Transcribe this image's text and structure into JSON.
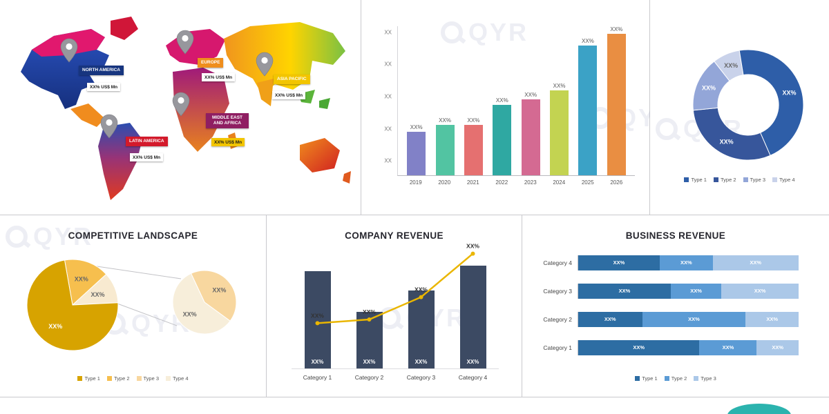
{
  "watermark": {
    "text": "QYR"
  },
  "cut_banners": [
    {
      "color": "#c01420"
    },
    {
      "color": "#2ab3a9"
    },
    {
      "color": "#2f6bb4"
    }
  ],
  "footer": {
    "logo_color": "#2bb3ae"
  },
  "chart_data": [
    {
      "id": "regional-market-map",
      "type": "map",
      "regions": [
        {
          "name": "NORTH AMERICA",
          "value": "XX% US$ Mn",
          "label_bg": "#17357f",
          "label_fg": "#ffffff",
          "value_bg": "#ffffff",
          "value_fg": "#1a1a1a"
        },
        {
          "name": "EUROPE",
          "value": "XX% US$ Mn",
          "label_bg": "#ef8e1d",
          "label_fg": "#ffffff",
          "value_bg": "#ffffff",
          "value_fg": "#1a1a1a"
        },
        {
          "name": "ASIA PACIFIC",
          "value": "XX% US$ Mn",
          "label_bg": "#f2c500",
          "label_fg": "#ffffff",
          "value_bg": "#ffffff",
          "value_fg": "#1a1a1a"
        },
        {
          "name": "MIDDLE EAST AND AFRICA",
          "value": "XX% US$ Mn",
          "label_bg": "#8f1e62",
          "label_fg": "#ffffff",
          "value_bg": "#f2c500",
          "value_fg": "#1a1a1a"
        },
        {
          "name": "LATIN AMERICA",
          "value": "XX% US$ Mn",
          "label_bg": "#d31a2b",
          "label_fg": "#ffffff",
          "value_bg": "#ffffff",
          "value_fg": "#1a1a1a"
        }
      ]
    },
    {
      "id": "market-size-by-year",
      "type": "bar",
      "title": "",
      "categories": [
        "2019",
        "2020",
        "2021",
        "2022",
        "2023",
        "2024",
        "2025",
        "2026"
      ],
      "values": [
        29,
        34,
        34,
        47,
        51,
        57,
        87,
        99
      ],
      "bar_labels": [
        "XX%",
        "XX%",
        "XX%",
        "XX%",
        "XX%",
        "XX%",
        "XX%",
        "XX%"
      ],
      "colors": [
        "#8181c7",
        "#52c4a2",
        "#e57070",
        "#2fa8a2",
        "#d46a92",
        "#c3d351",
        "#3ba2c6",
        "#e98e42"
      ],
      "y_ticks": [
        "XX",
        "XX",
        "XX",
        "XX",
        "XX"
      ],
      "xlabel": "",
      "ylabel": "",
      "ylim": [
        0,
        100
      ],
      "grid": false
    },
    {
      "id": "market-share-by-type",
      "type": "donut",
      "start_angle": -38,
      "segments": [
        {
          "label": "Type 4",
          "value": 8,
          "color": "#c9d2ea",
          "slice_label": "XX%"
        },
        {
          "label": "Type 1",
          "value": 46,
          "color": "#2e5ea8",
          "slice_label": "XX%"
        },
        {
          "label": "Type 2",
          "value": 30,
          "color": "#37569b",
          "slice_label": "XX%"
        },
        {
          "label": "Type 3",
          "value": 16,
          "color": "#93a6d8",
          "slice_label": "XX%"
        }
      ],
      "legend": [
        {
          "label": "Type 1",
          "color": "#2e5ea8"
        },
        {
          "label": "Type 2",
          "color": "#37569b"
        },
        {
          "label": "Type 3",
          "color": "#93a6d8"
        },
        {
          "label": "Type 4",
          "color": "#c9d2ea"
        }
      ]
    },
    {
      "id": "competitive-landscape",
      "type": "pie-breakout",
      "title": "COMPETITIVE LANDSCAPE",
      "main": {
        "start_angle": -10,
        "segments": [
          {
            "value": 16,
            "color": "#f6bf4e",
            "slice_label": "XX%"
          },
          {
            "value": 11,
            "color": "#f8ead0",
            "slice_label": "XX%"
          },
          {
            "value": 73,
            "color": "#d7a300",
            "slice_label": "XX%"
          }
        ]
      },
      "breakout": {
        "start_angle": -25,
        "segments": [
          {
            "value": 42,
            "color": "#f8d79f",
            "slice_label": "XX%"
          },
          {
            "value": 58,
            "color": "#f7eeda",
            "slice_label": "XX%"
          }
        ]
      },
      "legend": [
        {
          "label": "Type 1",
          "color": "#d7a300"
        },
        {
          "label": "Type 2",
          "color": "#f6bf4e"
        },
        {
          "label": "Type 3",
          "color": "#f8d79f"
        },
        {
          "label": "Type 4",
          "color": "#f7eeda"
        }
      ]
    },
    {
      "id": "company-revenue",
      "type": "bar-line",
      "title": "COMPANY REVENUE",
      "categories": [
        "Category 1",
        "Category 2",
        "Category 3",
        "Category 4"
      ],
      "bar_values": [
        79,
        46,
        63,
        83
      ],
      "bar_labels": [
        "XX%",
        "XX%",
        "XX%",
        "XX%"
      ],
      "bar_color": "#3c4a63",
      "line_values": [
        37,
        40,
        58,
        93
      ],
      "line_labels": [
        "XX%",
        "XX%",
        "XX%",
        "XX%"
      ],
      "line_color": "#eab600",
      "ylim": [
        0,
        100
      ]
    },
    {
      "id": "business-revenue",
      "type": "stacked-bar-h",
      "title": "BUSINESS REVENUE",
      "categories": [
        "Category 4",
        "Category 3",
        "Category 2",
        "Category 1"
      ],
      "series": [
        {
          "name": "Type 1",
          "color": "#2d6da3",
          "values": [
            37,
            42,
            29,
            55
          ]
        },
        {
          "name": "Type 2",
          "color": "#5b9bd5",
          "values": [
            24,
            23,
            47,
            26
          ]
        },
        {
          "name": "Type 3",
          "color": "#abc8e8",
          "values": [
            39,
            35,
            24,
            19
          ]
        }
      ],
      "segment_label": "XX%",
      "legend": [
        {
          "label": "Type 1",
          "color": "#2d6da3"
        },
        {
          "label": "Type 2",
          "color": "#5b9bd5"
        },
        {
          "label": "Type 3",
          "color": "#abc8e8"
        }
      ]
    }
  ]
}
